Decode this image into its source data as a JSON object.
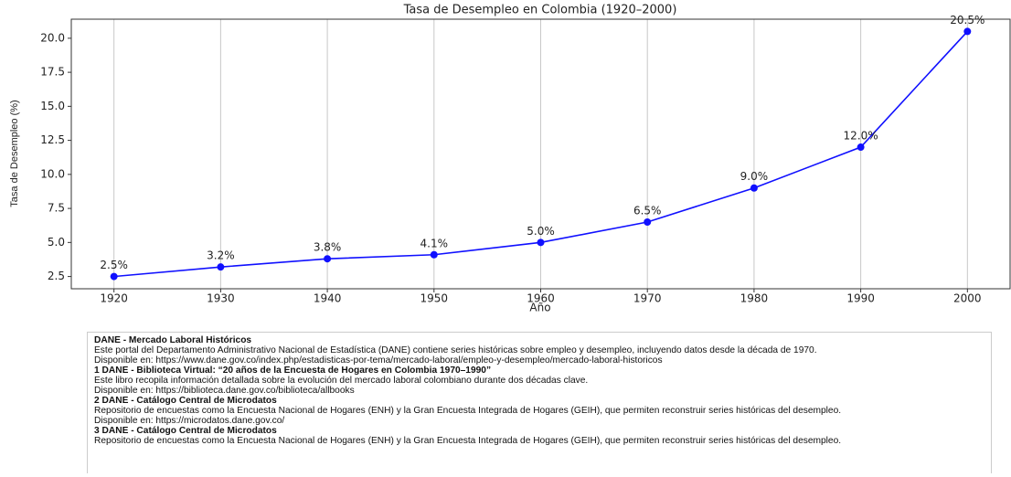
{
  "chart_data": {
    "type": "line",
    "title": "Tasa de Desempleo en Colombia (1920–2000)",
    "x_label": "Año",
    "y_label": "Tasa de Desempleo (%)",
    "x": [
      1920,
      1930,
      1940,
      1950,
      1960,
      1970,
      1980,
      1990,
      2000
    ],
    "series": [
      {
        "name": "Tasa de Desempleo",
        "color": "#1010ff",
        "values": [
          2.5,
          3.2,
          3.8,
          4.1,
          5.0,
          6.5,
          9.0,
          12.0,
          20.5
        ],
        "value_labels": [
          "2.5%",
          "3.2%",
          "3.8%",
          "4.1%",
          "5.0%",
          "6.5%",
          "9.0%",
          "12.0%",
          "20.5%"
        ]
      }
    ],
    "xlim": [
      1916,
      2004
    ],
    "xticks": [
      1920,
      1930,
      1940,
      1950,
      1960,
      1970,
      1980,
      1990,
      2000
    ],
    "ylim": [
      1.6,
      21.4
    ],
    "yticks": [
      2.5,
      {
        "value": 5,
        "label": "5.0"
      },
      7.5,
      {
        "value": 10,
        "label": "10.0"
      },
      12.5,
      {
        "value": 15,
        "label": "15.0"
      },
      17.5,
      {
        "value": 20,
        "label": "20.0"
      }
    ],
    "grid": "x"
  },
  "sources": [
    {
      "heading": "DANE - Mercado Laboral Históricos",
      "lines": [
        "Este portal del Departamento Administrativo  Nacional de Estadística (DANE) contiene series históricas sobre empleo y desempleo, incluyendo datos desde la década de 1970.",
        "Disponible  en: https://www.dane.gov.co/index.php/estadisticas-por-tema/mercado-laboral/empleo-y-desempleo/mercado-laboral-historicos"
      ]
    },
    {
      "heading": "1 DANE - Biblioteca Virtual: “20 años de la Encuesta de Hogares en Colombia 1970–1990”",
      "lines": [
        "Este libro recopila información detallada sobre la evolución del mercado laboral colombiano durante  dos décadas clave.",
        "Disponible  en: https://biblioteca.dane.gov.co/biblioteca/allbooks"
      ]
    },
    {
      "heading": "2 DANE - Catálogo Central de Microdatos",
      "lines": [
        "Repositorio de encuestas como la Encuesta Nacional de Hogares (ENH) y la Gran Encuesta Integrada de Hogares (GEIH), que permiten reconstruir series históricas del desempleo.",
        "Disponible en: https://microdatos.dane.gov.co/"
      ]
    },
    {
      "heading": "3 DANE - Catálogo Central de Microdatos",
      "lines": [
        "Repositorio de encuestas como la Encuesta Nacional de Hogares (ENH) y la Gran Encuesta Integrada de Hogares (GEIH), que permiten reconstruir series históricas del desempleo."
      ]
    }
  ]
}
